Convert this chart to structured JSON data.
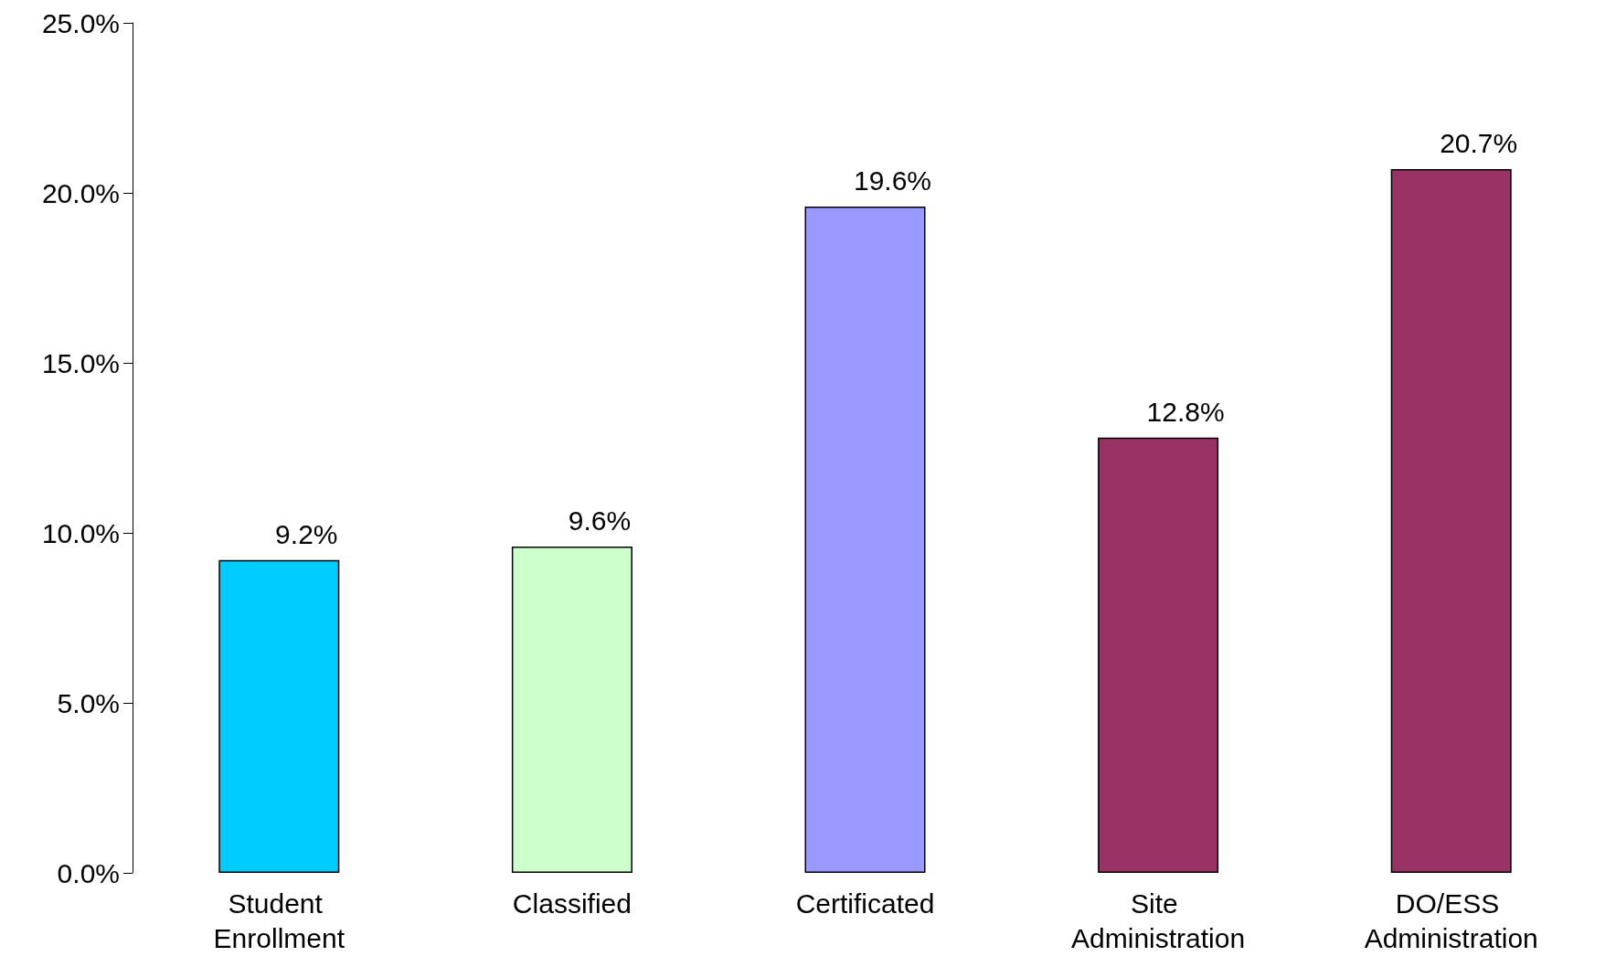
{
  "chart_data": {
    "type": "bar",
    "categories": [
      "Student Enrollment",
      "Classified",
      "Certificated",
      "Site Administration",
      "DO/ESS Administration"
    ],
    "values": [
      9.2,
      9.6,
      19.6,
      12.8,
      20.7
    ],
    "colors": [
      "#00ccff",
      "#ccffcc",
      "#9999ff",
      "#993366",
      "#993366"
    ],
    "value_labels": [
      "9.2%",
      "9.6%",
      "19.6%",
      "12.8%",
      "20.7%"
    ],
    "ylim": [
      0,
      25
    ],
    "yticks": [
      {
        "value": 0,
        "label": "0.0%"
      },
      {
        "value": 5,
        "label": "5.0%"
      },
      {
        "value": 10,
        "label": "10.0%"
      },
      {
        "value": 15,
        "label": "15.0%"
      },
      {
        "value": 20,
        "label": "20.0%"
      },
      {
        "value": 25,
        "label": "25.0%"
      }
    ],
    "grid": false
  }
}
